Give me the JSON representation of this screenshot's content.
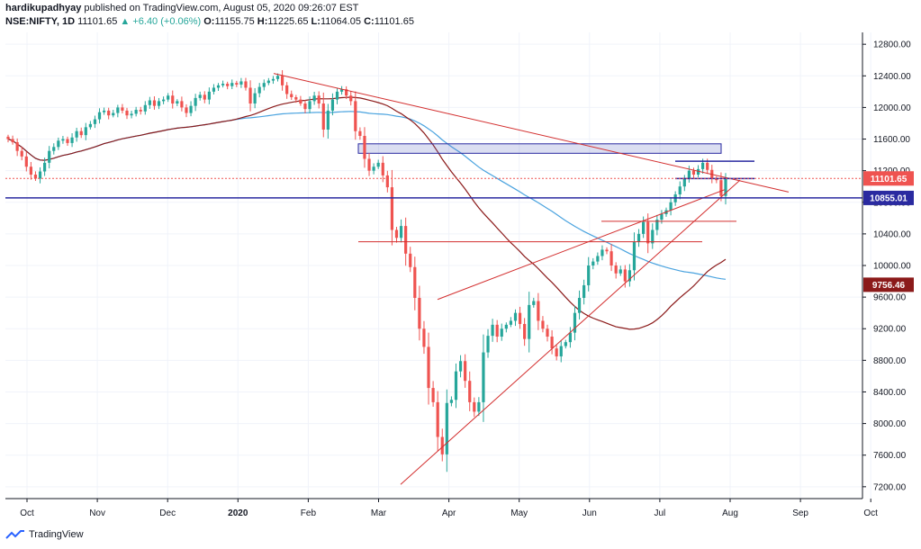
{
  "header": {
    "author": "hardikupadhyay",
    "published_text": "published on TradingView.com, August 05, 2020 09:26:07 EST"
  },
  "ohlc": {
    "symbol": "NSE:NIFTY, 1D",
    "last": "11101.65",
    "change": "+6.40 (+0.06%)",
    "open_label": "O:",
    "open": "11155.75",
    "high_label": "H:",
    "high": "11225.65",
    "low_label": "L:",
    "low": "11064.05",
    "close_label": "C:",
    "close": "11101.65"
  },
  "footer": {
    "brand": "TradingView"
  },
  "colors": {
    "up": "#26a69a",
    "down": "#ef5350",
    "trend": "#d32f2f",
    "sma_short": "#4aa3df",
    "sma_long": "#8b1a1a",
    "support": "#2a2aa0"
  },
  "chart_data": {
    "type": "candlestick",
    "ylim": [
      7050,
      12950
    ],
    "y_ticks": [
      "7200.00",
      "7600.00",
      "8000.00",
      "8400.00",
      "8800.00",
      "9200.00",
      "9600.00",
      "10000.00",
      "10400.00",
      "10800.00",
      "11200.00",
      "11600.00",
      "12000.00",
      "12400.00",
      "12800.00"
    ],
    "x_labels": [
      "Oct",
      "Nov",
      "Dec",
      "2020",
      "Feb",
      "Mar",
      "Apr",
      "May",
      "Jun",
      "Jul",
      "Aug",
      "Sep",
      "Oct"
    ],
    "price_tags": [
      {
        "value": "11101.65",
        "kind": "last"
      },
      {
        "value": "10855.01",
        "kind": "support"
      },
      {
        "value": "9756.46",
        "kind": "sma"
      }
    ],
    "closes": [
      11600,
      11560,
      11450,
      11380,
      11250,
      11150,
      11100,
      11190,
      11300,
      11450,
      11500,
      11580,
      11600,
      11550,
      11620,
      11700,
      11650,
      11750,
      11790,
      11850,
      11940,
      11960,
      11900,
      11930,
      12000,
      11960,
      11900,
      11920,
      11970,
      11950,
      12030,
      12090,
      12020,
      12080,
      12100,
      12150,
      12050,
      12080,
      12000,
      11930,
      12020,
      12120,
      12160,
      12100,
      12200,
      12250,
      12280,
      12300,
      12270,
      12310,
      12290,
      12330,
      12250,
      12050,
      12180,
      12260,
      12310,
      12340,
      12360,
      12400,
      12280,
      12170,
      12130,
      12100,
      12050,
      11980,
      12080,
      12150,
      12050,
      11720,
      11960,
      12100,
      12200,
      12230,
      12150,
      12080,
      11700,
      11640,
      11350,
      11200,
      11250,
      11300,
      11140,
      10990,
      10450,
      10350,
      10500,
      10150,
      9980,
      9590,
      9200,
      8970,
      8450,
      8270,
      7830,
      7610,
      8260,
      8300,
      8660,
      8790,
      8540,
      8270,
      8150,
      8270,
      8900,
      9110,
      9250,
      9100,
      9200,
      9250,
      9300,
      9400,
      9260,
      9070,
      9500,
      9550,
      9300,
      9200,
      9100,
      8950,
      8850,
      8980,
      9030,
      9150,
      9400,
      9590,
      9750,
      10000,
      10050,
      10120,
      10200,
      10180,
      10000,
      9900,
      9950,
      9800,
      9940,
      10300,
      10400,
      10550,
      10280,
      10450,
      10580,
      10650,
      10700,
      10800,
      10900,
      11000,
      11100,
      11200,
      11150,
      11220,
      11300,
      11210,
      11100,
      11080,
      10880,
      11100
    ]
  }
}
